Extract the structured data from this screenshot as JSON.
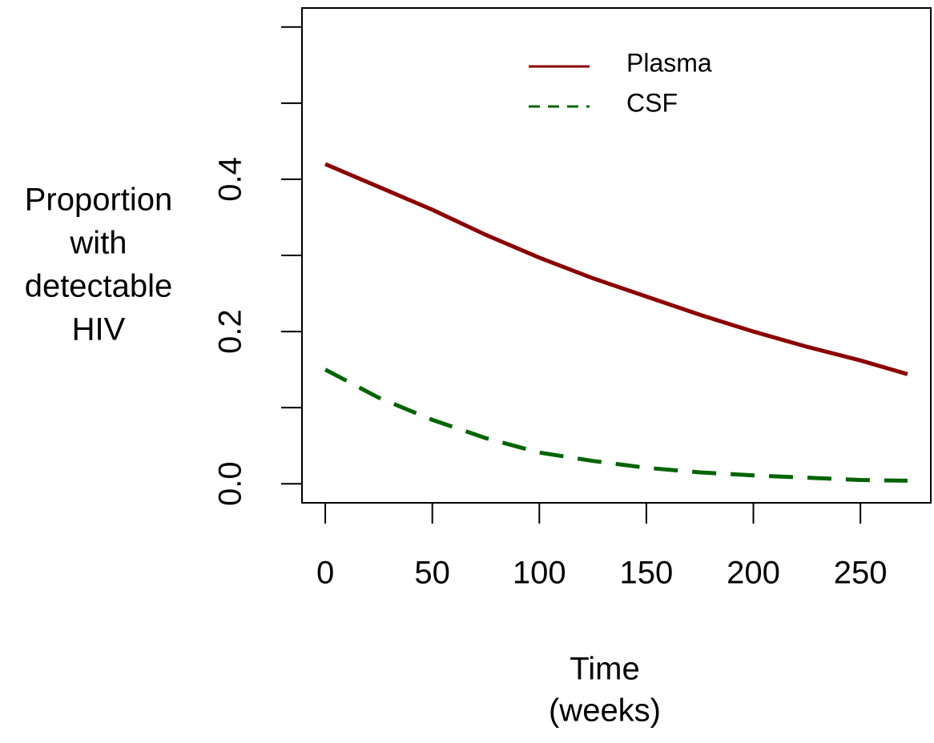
{
  "chart_data": {
    "type": "line",
    "xlabel": [
      "Time",
      "(weeks)"
    ],
    "ylabel": [
      "Proportion",
      "with",
      "detectable",
      "HIV"
    ],
    "x": [
      0,
      25,
      50,
      75,
      100,
      125,
      150,
      175,
      200,
      225,
      250,
      272
    ],
    "series": [
      {
        "name": "Plasma",
        "color": "#8b0000",
        "dash": "solid",
        "values": [
          0.42,
          0.39,
          0.36,
          0.327,
          0.297,
          0.27,
          0.246,
          0.222,
          0.2,
          0.18,
          0.162,
          0.144
        ]
      },
      {
        "name": "CSF",
        "color": "#006400",
        "dash": "dashed",
        "values": [
          0.15,
          0.113,
          0.084,
          0.06,
          0.041,
          0.03,
          0.021,
          0.015,
          0.011,
          0.008,
          0.005,
          0.004
        ]
      }
    ],
    "xlim": [
      -10.88,
      282.88
    ],
    "ylim": [
      -0.025,
      0.625
    ],
    "xticks": [
      0,
      50,
      100,
      150,
      200,
      250
    ],
    "yticks": [
      {
        "value": 0,
        "label": "0.0"
      },
      {
        "value": 0.1,
        "label": null
      },
      {
        "value": 0.2,
        "label": "0.2"
      },
      {
        "value": 0.3,
        "label": null
      },
      {
        "value": 0.4,
        "label": "0.4"
      },
      {
        "value": 0.5,
        "label": null
      },
      {
        "value": 0.6,
        "label": null
      }
    ],
    "legend": "top"
  }
}
